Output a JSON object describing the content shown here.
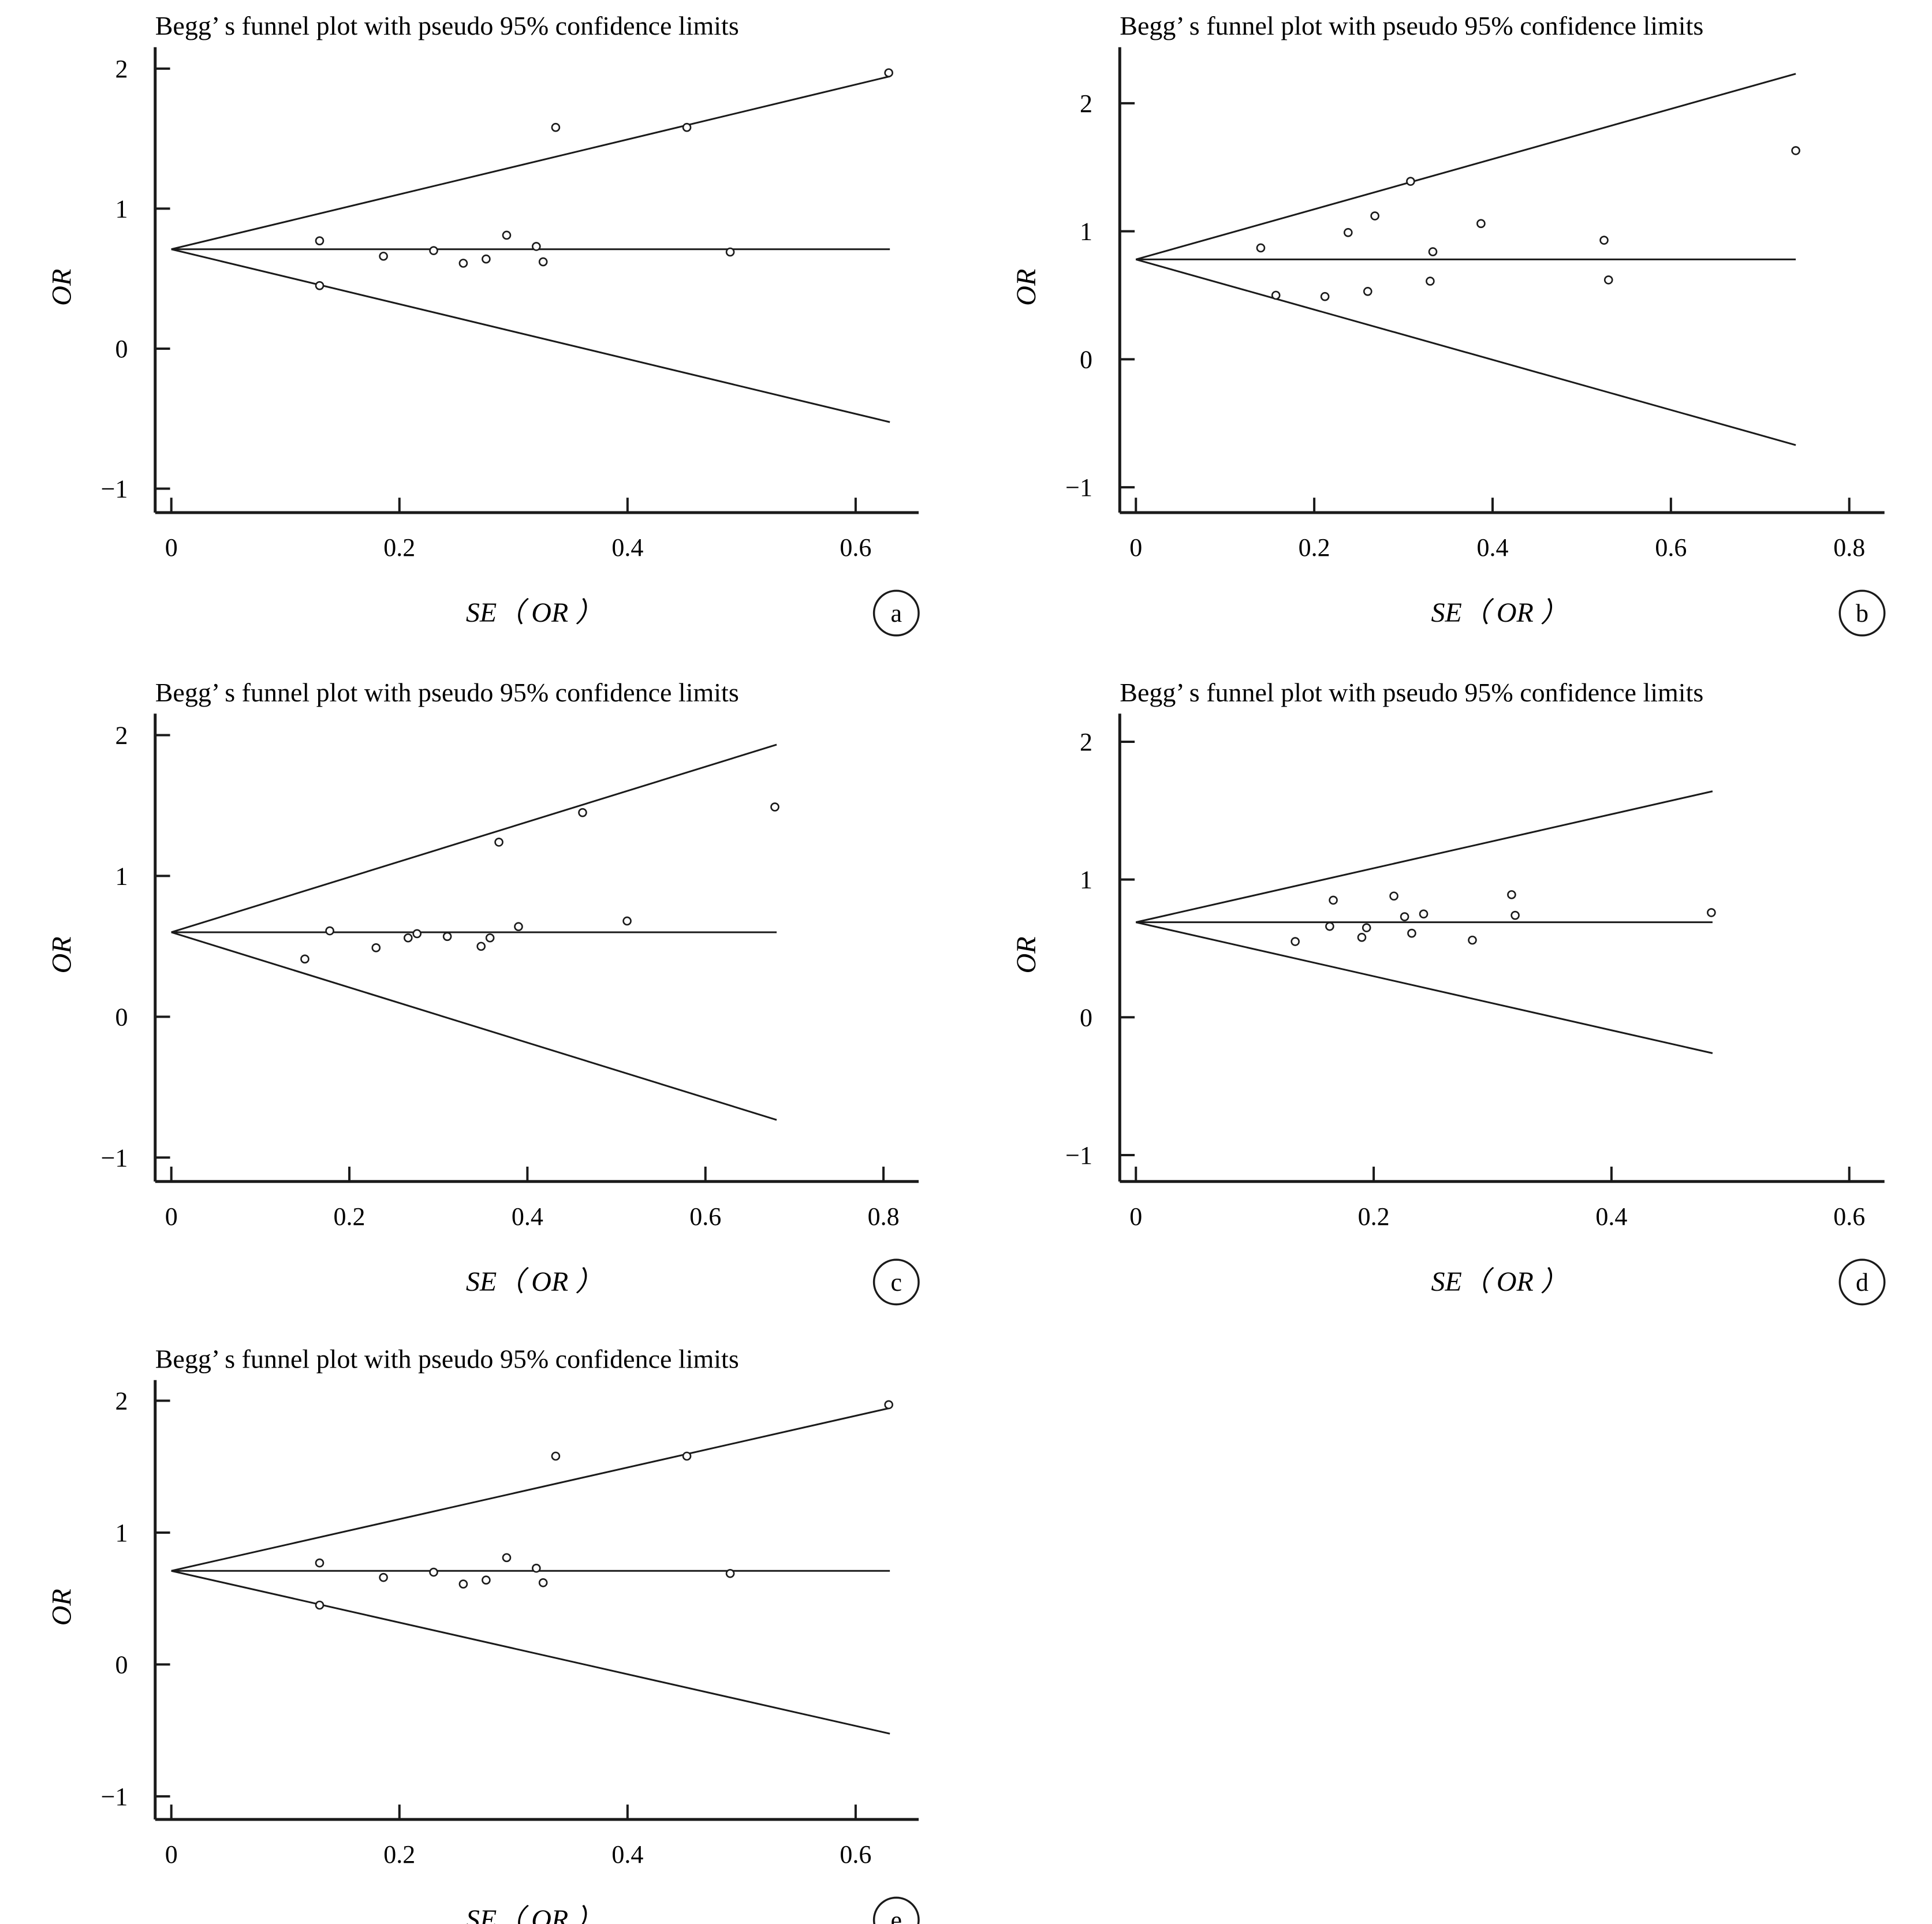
{
  "chart_data": [
    {
      "panel": "a",
      "type": "scatter",
      "title": "Begg’ s funnel plot with pseudo 95% confidence limits",
      "xlabel": "SE（ OR ）",
      "ylabel": "OR",
      "xlim": [
        0,
        0.64
      ],
      "ylim": [
        -1.1,
        2.1
      ],
      "xticks": [
        0,
        0.2,
        0.4,
        0.6
      ],
      "xtick_labels": [
        "0",
        "0.2",
        "0.4",
        "0.6"
      ],
      "yticks": [
        -1,
        0,
        1,
        2
      ],
      "ytick_labels": [
        "−1",
        "0",
        "1",
        "2"
      ],
      "pooled": 0.71,
      "line_end_x": 0.63,
      "points": [
        [
          0.13,
          0.77
        ],
        [
          0.13,
          0.45
        ],
        [
          0.186,
          0.66
        ],
        [
          0.23,
          0.7
        ],
        [
          0.256,
          0.61
        ],
        [
          0.276,
          0.64
        ],
        [
          0.294,
          0.81
        ],
        [
          0.32,
          0.73
        ],
        [
          0.326,
          0.62
        ],
        [
          0.337,
          1.58
        ],
        [
          0.452,
          1.58
        ],
        [
          0.49,
          0.69
        ],
        [
          0.629,
          1.97
        ]
      ]
    },
    {
      "panel": "b",
      "type": "scatter",
      "title": "Begg’ s funnel plot with pseudo 95% confidence limits",
      "xlabel": "SE（ OR ）",
      "ylabel": "OR",
      "xlim": [
        0,
        0.82
      ],
      "ylim": [
        -1.12,
        2.38
      ],
      "xticks": [
        0,
        0.2,
        0.4,
        0.6,
        0.8
      ],
      "xtick_labels": [
        "0",
        "0.2",
        "0.4",
        "0.6",
        "0.8"
      ],
      "yticks": [
        -1,
        0,
        1,
        2
      ],
      "ytick_labels": [
        "−1",
        "0",
        "1",
        "2"
      ],
      "pooled": 0.78,
      "line_end_x": 0.74,
      "points": [
        [
          0.14,
          0.87
        ],
        [
          0.157,
          0.5
        ],
        [
          0.212,
          0.49
        ],
        [
          0.238,
          0.99
        ],
        [
          0.26,
          0.53
        ],
        [
          0.268,
          1.12
        ],
        [
          0.308,
          1.39
        ],
        [
          0.33,
          0.61
        ],
        [
          0.333,
          0.84
        ],
        [
          0.387,
          1.06
        ],
        [
          0.525,
          0.93
        ],
        [
          0.53,
          0.62
        ],
        [
          0.74,
          1.63
        ]
      ]
    },
    {
      "panel": "c",
      "type": "scatter",
      "title": "Begg’ s funnel plot with pseudo 95% confidence limits",
      "xlabel": "SE（ OR ）",
      "ylabel": "OR",
      "xlim": [
        0,
        0.82
      ],
      "ylim": [
        -1.1,
        2.1
      ],
      "xticks": [
        0,
        0.2,
        0.4,
        0.6,
        0.8
      ],
      "xtick_labels": [
        "0",
        "0.2",
        "0.4",
        "0.6",
        "0.8"
      ],
      "yticks": [
        -1,
        0,
        1,
        2
      ],
      "ytick_labels": [
        "−1",
        "0",
        "1",
        "2"
      ],
      "pooled": 0.6,
      "line_end_x": 0.68,
      "points": [
        [
          0.15,
          0.41
        ],
        [
          0.178,
          0.61
        ],
        [
          0.23,
          0.49
        ],
        [
          0.266,
          0.56
        ],
        [
          0.276,
          0.59
        ],
        [
          0.31,
          0.57
        ],
        [
          0.348,
          0.5
        ],
        [
          0.358,
          0.56
        ],
        [
          0.368,
          1.24
        ],
        [
          0.39,
          0.64
        ],
        [
          0.462,
          1.45
        ],
        [
          0.512,
          0.68
        ],
        [
          0.678,
          1.49
        ]
      ]
    },
    {
      "panel": "d",
      "type": "scatter",
      "title": "Begg’ s funnel plot with pseudo 95% confidence limits",
      "xlabel": "SE（ OR ）",
      "ylabel": "OR",
      "xlim": [
        0,
        0.615
      ],
      "ylim": [
        -1.12,
        2.15
      ],
      "xticks": [
        0,
        0.2,
        0.4,
        0.6
      ],
      "xtick_labels": [
        "0",
        "0.2",
        "0.4",
        "0.6"
      ],
      "yticks": [
        -1,
        0,
        1,
        2
      ],
      "ytick_labels": [
        "−1",
        "0",
        "1",
        "2"
      ],
      "pooled": 0.69,
      "line_end_x": 0.485,
      "points": [
        [
          0.134,
          0.55
        ],
        [
          0.163,
          0.66
        ],
        [
          0.166,
          0.85
        ],
        [
          0.19,
          0.58
        ],
        [
          0.194,
          0.65
        ],
        [
          0.217,
          0.88
        ],
        [
          0.226,
          0.73
        ],
        [
          0.232,
          0.61
        ],
        [
          0.242,
          0.75
        ],
        [
          0.283,
          0.56
        ],
        [
          0.316,
          0.89
        ],
        [
          0.319,
          0.74
        ],
        [
          0.484,
          0.76
        ]
      ]
    },
    {
      "panel": "e",
      "type": "scatter",
      "title": "Begg’ s funnel plot with pseudo 95% confidence limits",
      "xlabel": "SE（ OR ）",
      "ylabel": "OR",
      "xlim": [
        0,
        0.64
      ],
      "ylim": [
        -1.1,
        2.1
      ],
      "xticks": [
        0,
        0.2,
        0.4,
        0.6
      ],
      "xtick_labels": [
        "0",
        "0.2",
        "0.4",
        "0.6"
      ],
      "yticks": [
        -1,
        0,
        1,
        2
      ],
      "ytick_labels": [
        "−1",
        "0",
        "1",
        "2"
      ],
      "pooled": 0.71,
      "line_end_x": 0.63,
      "points": [
        [
          0.13,
          0.77
        ],
        [
          0.13,
          0.45
        ],
        [
          0.186,
          0.66
        ],
        [
          0.23,
          0.7
        ],
        [
          0.256,
          0.61
        ],
        [
          0.276,
          0.64
        ],
        [
          0.294,
          0.81
        ],
        [
          0.32,
          0.73
        ],
        [
          0.326,
          0.62
        ],
        [
          0.337,
          1.58
        ],
        [
          0.452,
          1.58
        ],
        [
          0.49,
          0.69
        ],
        [
          0.629,
          1.97
        ]
      ]
    }
  ]
}
